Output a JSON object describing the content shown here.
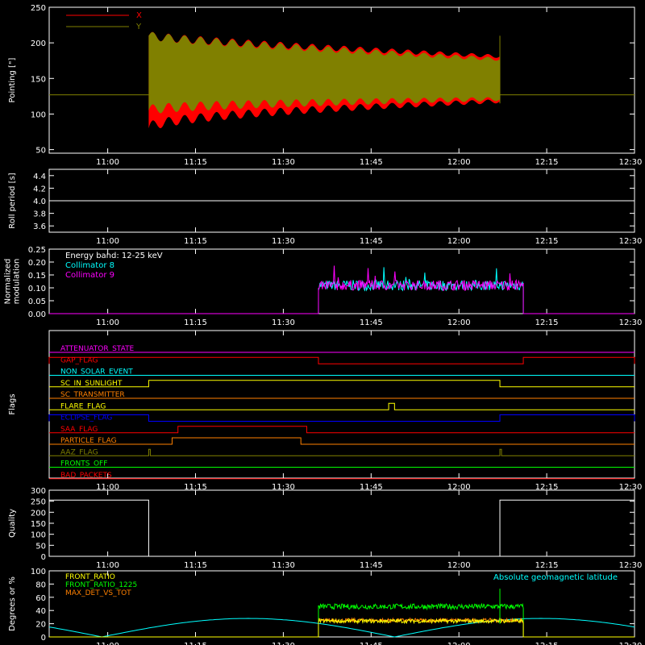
{
  "x_ticks": [
    "11:00",
    "11:15",
    "11:30",
    "11:45",
    "12:00",
    "12:15",
    "12:30"
  ],
  "chart_data": [
    {
      "type": "line",
      "ylabel": "Pointing [\"]",
      "ylim": [
        45,
        250
      ],
      "yticks": [
        50,
        100,
        150,
        200,
        250
      ],
      "series": [
        {
          "name": "X",
          "color": "#ff0000"
        },
        {
          "name": "Y",
          "color": "#808000"
        }
      ],
      "envelope": {
        "x_start": "11:07",
        "x_end": "12:07",
        "outside_value": 127,
        "x_upper_start": 210,
        "x_upper_end": 181,
        "x_lower_start": 80,
        "x_lower_end": 118,
        "y_upper_start": 210,
        "y_upper_end": 177,
        "y_lower_start": 105,
        "y_lower_end": 121,
        "spike_max": 210,
        "spike_min": 115
      },
      "grid": false
    },
    {
      "type": "line",
      "ylabel": "Roll period [s]",
      "ylim": [
        3.5,
        4.5
      ],
      "yticks": [
        3.6,
        3.8,
        4.0,
        4.2,
        4.4
      ],
      "series": [
        {
          "value": 4.0,
          "color": "#ffffff"
        }
      ]
    },
    {
      "type": "line",
      "ylabel": "Normalized\nmodulation",
      "ylabel_lines": [
        "Normalized",
        "modulation"
      ],
      "ylim": [
        0.0,
        0.25
      ],
      "yticks": [
        0.0,
        0.05,
        0.1,
        0.15,
        0.2,
        0.25
      ],
      "annotation": "Energy band: 12-25 keV",
      "series": [
        {
          "name": "Collimator 8",
          "color": "#00ffff"
        },
        {
          "name": "Collimator 9",
          "color": "#ff00ff"
        }
      ],
      "active_start": "11:36",
      "active_end": "12:11",
      "mean_value": 0.11
    },
    {
      "type": "line",
      "ylabel": "Flags",
      "flags": [
        {
          "name": "ATTENUATOR_STATE",
          "color": "#ff00ff",
          "high": []
        },
        {
          "name": "GAP_FLAG",
          "color": "#ff0000",
          "high": [
            [
              "10:50",
              "11:36"
            ],
            [
              "12:11",
              "12:30"
            ]
          ]
        },
        {
          "name": "NON_SOLAR_EVENT",
          "color": "#00ffff",
          "high": []
        },
        {
          "name": "SC_IN_SUNLIGHT",
          "color": "#ffff00",
          "high": [
            [
              "11:07",
              "12:07"
            ]
          ]
        },
        {
          "name": "SC_TRANSMITTER",
          "color": "#ff8000",
          "high": []
        },
        {
          "name": "FLARE_FLAG",
          "color": "#ffff00",
          "high": [
            [
              "11:48",
              "11:49"
            ]
          ]
        },
        {
          "name": "ECLIPSE_FLAG",
          "color": "#0000ff",
          "high": [
            [
              "10:50",
              "11:07"
            ],
            [
              "12:07",
              "12:30"
            ]
          ]
        },
        {
          "name": "SAA_FLAG",
          "color": "#ff0000",
          "high": [
            [
              "11:12",
              "11:34"
            ]
          ]
        },
        {
          "name": "PARTICLE_FLAG",
          "color": "#ff8000",
          "high": [
            [
              "11:11",
              "11:33"
            ]
          ]
        },
        {
          "name": "AAZ_FLAG",
          "color": "#808000",
          "high": [
            [
              "11:07",
              "11:07"
            ],
            [
              "12:07",
              "12:07"
            ]
          ]
        },
        {
          "name": "FRONTS_OFF",
          "color": "#00ff00",
          "high": []
        },
        {
          "name": "BAD_PACKETS",
          "color": "#ff0000",
          "high": []
        }
      ]
    },
    {
      "type": "line",
      "ylabel": "Quality",
      "ylim": [
        0,
        300
      ],
      "yticks": [
        0,
        50,
        100,
        150,
        200,
        250,
        300
      ],
      "segments": [
        {
          "x_start": "10:50",
          "x_end": "11:07",
          "value": 255
        },
        {
          "x_start": "11:07",
          "x_end": "12:07",
          "value": 0
        },
        {
          "x_start": "12:07",
          "x_end": "12:30",
          "value": 255
        }
      ],
      "color": "#ffffff"
    },
    {
      "type": "line",
      "ylabel": "Degrees or %",
      "ylim": [
        0,
        100
      ],
      "yticks": [
        0,
        20,
        40,
        60,
        80,
        100
      ],
      "annotation": "Absolute geomagnetic latitude",
      "annotation_color": "#00ffff",
      "series": [
        {
          "name": "FRONT_RATIO",
          "color": "#ffff00",
          "mean": 24
        },
        {
          "name": "FRONT_RATIO_1225",
          "color": "#00ff00",
          "mean": 46
        },
        {
          "name": "MAX_DET_VS_TOT",
          "color": "#ff8000",
          "mean": 25
        }
      ],
      "active_start": "11:36",
      "active_end": "12:11",
      "latitude": {
        "amplitude": 28,
        "min_points": [
          "10:59",
          "11:49"
        ],
        "max_points": [
          "11:22",
          "12:11"
        ]
      }
    }
  ]
}
